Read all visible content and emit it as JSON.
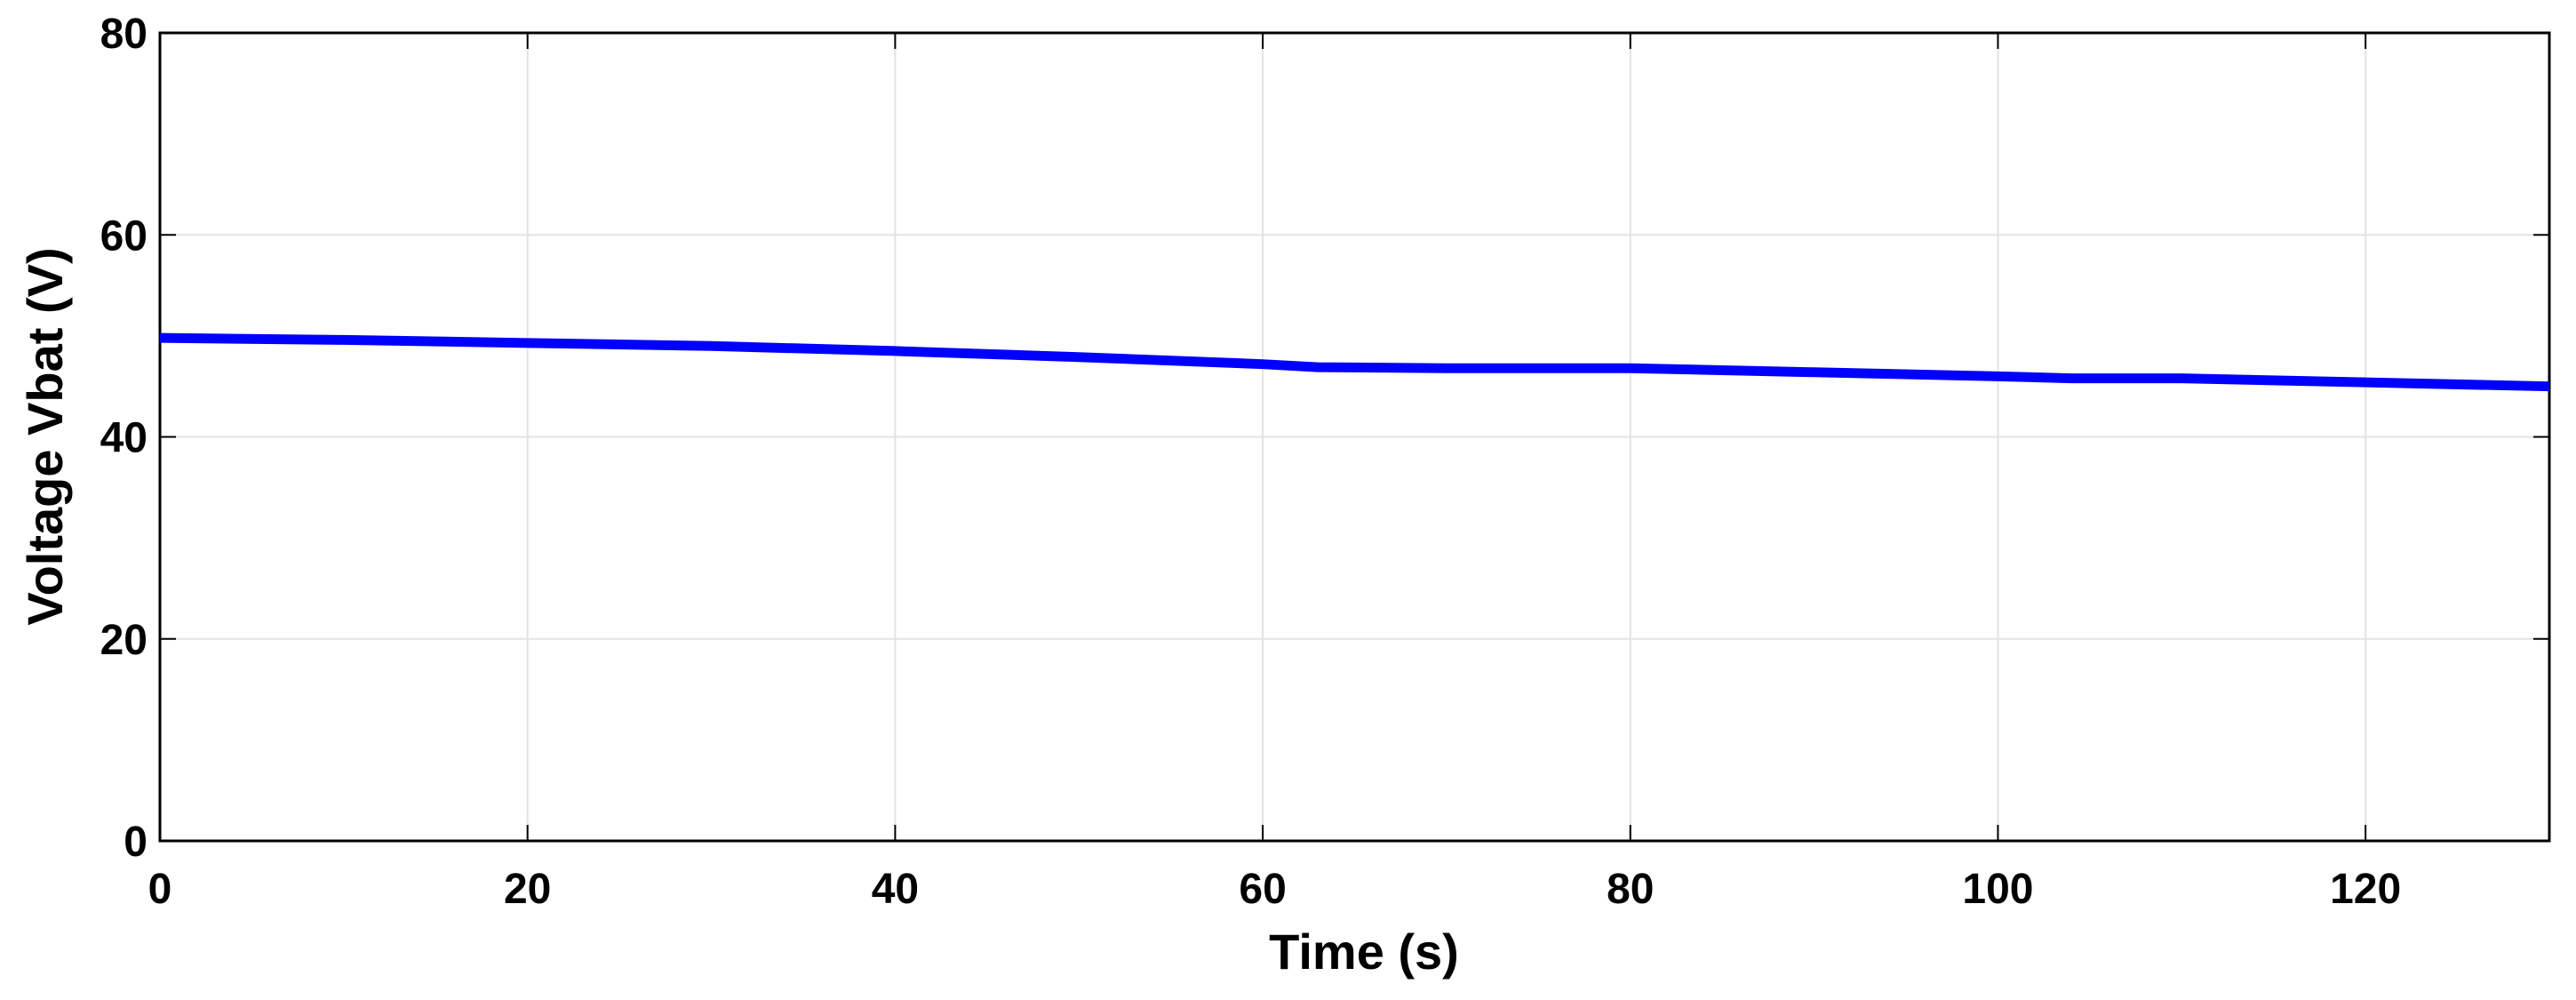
{
  "chart_data": {
    "type": "line",
    "xlabel": "Time (s)",
    "ylabel": "Voltage Vbat (V)",
    "x": [
      0,
      10,
      20,
      30,
      40,
      50,
      60,
      63,
      70,
      80,
      85,
      90,
      100,
      104,
      110,
      120,
      130
    ],
    "series": [
      {
        "color": "#0000ff",
        "values": [
          49.8,
          49.6,
          49.3,
          49.0,
          48.5,
          47.9,
          47.2,
          46.9,
          46.8,
          46.8,
          46.6,
          46.4,
          46.0,
          45.8,
          45.8,
          45.4,
          45.0
        ]
      }
    ],
    "xlim": [
      0,
      130
    ],
    "xticks": [
      0,
      20,
      40,
      60,
      80,
      100,
      120
    ],
    "ylim": [
      0,
      80
    ],
    "yticks": [
      0,
      20,
      40,
      60,
      80
    ],
    "grid": true
  }
}
